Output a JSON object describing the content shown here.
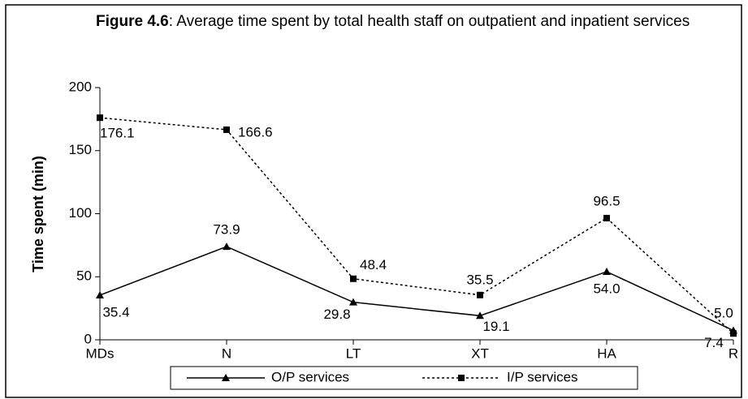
{
  "chart_data": {
    "type": "line",
    "title_label": "Figure 4.6",
    "title": ": Average time spent by total health staff on outpatient and inpatient services",
    "y_label": "Time spent (min)",
    "categories": [
      "MDs",
      "N",
      "LT",
      "XT",
      "HA",
      "R"
    ],
    "series": [
      {
        "name": "O/P services",
        "color": "#000000",
        "marker": "triangle",
        "dash": "solid",
        "values": [
          35.4,
          73.9,
          29.8,
          19.1,
          54,
          7.4
        ],
        "value_labels": [
          "35.4",
          "73.9",
          "29.8",
          "19.1",
          "54.0",
          "7.4"
        ]
      },
      {
        "name": "I/P services",
        "color": "#000000",
        "marker": "square",
        "dash": "dashed",
        "values": [
          176.1,
          166.6,
          48.4,
          35.5,
          96.5,
          5
        ],
        "value_labels": [
          "176.1",
          "166.6",
          "48.4",
          "35.5",
          "96.5",
          "5.0"
        ]
      }
    ],
    "ylim": [
      0,
      200
    ],
    "yticks": [
      0,
      50,
      100,
      150,
      200
    ],
    "grid": false,
    "legend": "bottom"
  }
}
